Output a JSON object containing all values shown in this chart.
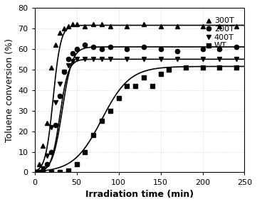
{
  "title": "",
  "xlabel": "Irradiation time (min)",
  "ylabel": "Toluene conversion (%)",
  "xlim": [
    0,
    250
  ],
  "ylim": [
    0,
    80
  ],
  "xticks": [
    0,
    50,
    100,
    150,
    200,
    250
  ],
  "yticks": [
    0,
    10,
    20,
    30,
    40,
    50,
    60,
    70,
    80
  ],
  "background_color": "#ffffff",
  "series": [
    {
      "label": "300T",
      "marker": "^",
      "color": "black",
      "plateau": 71.5,
      "k": 0.22,
      "t0": 22,
      "data_x": [
        0,
        5,
        10,
        15,
        20,
        25,
        30,
        35,
        40,
        45,
        50,
        60,
        70,
        80,
        90,
        110,
        130,
        150,
        170,
        200,
        220,
        240
      ],
      "data_y": [
        0,
        4,
        13,
        24,
        51,
        62,
        68,
        70,
        71,
        72,
        72,
        71,
        72,
        72,
        71,
        71,
        72,
        71,
        71,
        71,
        71,
        71
      ]
    },
    {
      "label": "200T",
      "marker": "o",
      "color": "black",
      "plateau": 61.0,
      "k": 0.17,
      "t0": 33,
      "data_x": [
        0,
        5,
        10,
        15,
        20,
        25,
        30,
        35,
        40,
        45,
        50,
        60,
        70,
        80,
        90,
        110,
        130,
        150,
        170,
        200,
        220,
        240
      ],
      "data_y": [
        0,
        0,
        1,
        4,
        10,
        23,
        37,
        49,
        55,
        58,
        60,
        62,
        61,
        60,
        61,
        60,
        61,
        60,
        59,
        60,
        60,
        61
      ]
    },
    {
      "label": "400T",
      "marker": "v",
      "color": "black",
      "plateau": 55.0,
      "k": 0.2,
      "t0": 30,
      "data_x": [
        0,
        5,
        10,
        15,
        20,
        25,
        30,
        35,
        40,
        45,
        50,
        60,
        70,
        80,
        90,
        110,
        130,
        150,
        170,
        200,
        220,
        240
      ],
      "data_y": [
        0,
        0,
        2,
        8,
        22,
        34,
        43,
        49,
        52,
        54,
        55,
        55,
        55,
        55,
        55,
        55,
        55,
        55,
        55,
        55,
        55,
        55
      ]
    },
    {
      "label": "WT",
      "marker": "s",
      "color": "black",
      "plateau": 51.5,
      "k": 0.06,
      "t0": 80,
      "data_x": [
        0,
        10,
        20,
        30,
        40,
        50,
        60,
        70,
        80,
        90,
        100,
        110,
        120,
        130,
        140,
        150,
        160,
        180,
        200,
        220,
        240
      ],
      "data_y": [
        0,
        0,
        0,
        0,
        1,
        4,
        10,
        18,
        25,
        30,
        36,
        42,
        42,
        46,
        42,
        48,
        50,
        51,
        51,
        51,
        51
      ]
    }
  ],
  "legend_labels_order": [
    "300T",
    "200T",
    "400T",
    "WT"
  ],
  "markersize": 4.5,
  "linewidth": 1.2,
  "grid_color": "#cccccc",
  "grid_style": ":"
}
